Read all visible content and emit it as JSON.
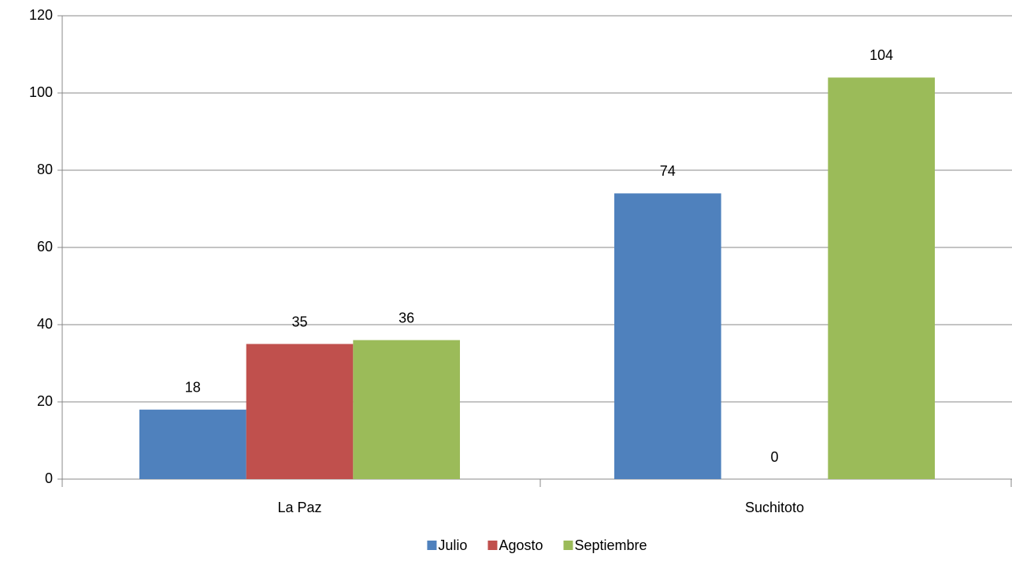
{
  "chart_data": {
    "type": "bar",
    "categories": [
      "La Paz",
      "Suchitoto"
    ],
    "series": [
      {
        "name": "Julio",
        "color": "#4f81bd",
        "values": [
          18,
          74
        ]
      },
      {
        "name": "Agosto",
        "color": "#c0504d",
        "values": [
          35,
          0
        ]
      },
      {
        "name": "Septiembre",
        "color": "#9bbb59",
        "values": [
          36,
          104
        ]
      }
    ],
    "ylim": [
      0,
      120
    ],
    "yticks": [
      0,
      20,
      40,
      60,
      80,
      100,
      120
    ],
    "grid": true,
    "legend": "bottom"
  }
}
